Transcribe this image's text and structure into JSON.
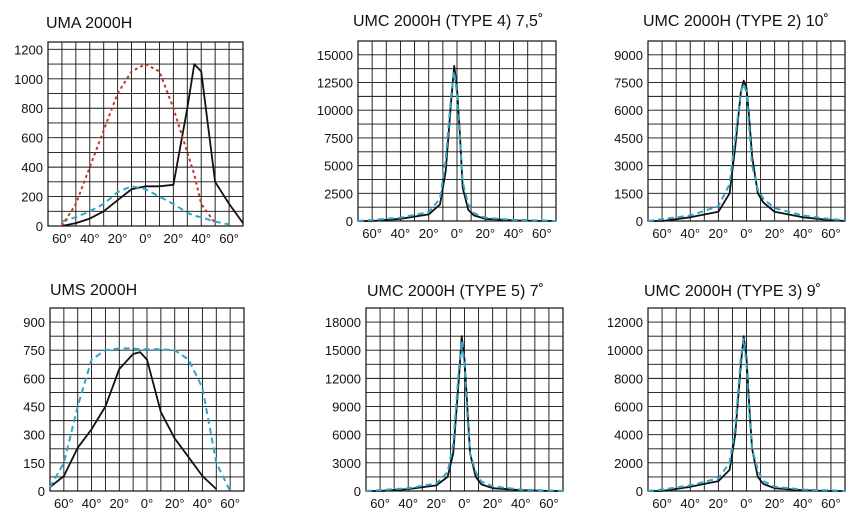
{
  "colors": {
    "solid": "#111111",
    "dash_cyan": "#2aa7c9",
    "dash_red": "#c0392b",
    "grid": "#111111"
  },
  "chart_data": [
    {
      "type": "line",
      "title": "UMA 2000H",
      "x": [
        -70,
        -60,
        -50,
        -40,
        -30,
        -20,
        -10,
        0,
        10,
        20,
        30,
        35,
        40,
        50,
        60,
        70
      ],
      "ylim": [
        0,
        1250
      ],
      "yticks": [
        0,
        200,
        400,
        600,
        800,
        1000,
        1200
      ],
      "xtick_labels": [
        "60°",
        "40°",
        "20°",
        "0°",
        "20°",
        "40°",
        "60°"
      ],
      "series": [
        {
          "style": "solid",
          "values": [
            null,
            0,
            20,
            50,
            100,
            175,
            250,
            270,
            270,
            280,
            800,
            1100,
            1050,
            300,
            150,
            20
          ]
        },
        {
          "style": "dash_cyan",
          "values": [
            null,
            30,
            60,
            100,
            150,
            230,
            270,
            250,
            200,
            150,
            90,
            70,
            60,
            30,
            10,
            null
          ]
        },
        {
          "style": "dash_red",
          "values": [
            null,
            0,
            150,
            400,
            650,
            900,
            1050,
            1100,
            1050,
            800,
            500,
            350,
            150,
            20,
            null,
            null
          ]
        }
      ]
    },
    {
      "type": "line",
      "title": "UMC 2000H (TYPE 4) 7,5˚",
      "x": [
        -70,
        -60,
        -40,
        -20,
        -12,
        -8,
        -4,
        -2,
        0,
        2,
        4,
        8,
        12,
        20,
        40,
        60,
        70
      ],
      "ylim": [
        0,
        16250
      ],
      "yticks": [
        0,
        2500,
        5000,
        7500,
        10000,
        12500,
        15000
      ],
      "xtick_labels": [
        "60°",
        "40°",
        "20°",
        "0°",
        "20°",
        "40°",
        "60°"
      ],
      "series": [
        {
          "style": "solid",
          "values": [
            0,
            0,
            200,
            600,
            1500,
            4500,
            11000,
            14000,
            12000,
            8000,
            3000,
            1000,
            500,
            200,
            50,
            0,
            0
          ]
        },
        {
          "style": "dash_cyan",
          "values": [
            0,
            100,
            300,
            800,
            2000,
            5500,
            11500,
            13500,
            11500,
            7500,
            3500,
            1500,
            700,
            300,
            100,
            50,
            0
          ]
        }
      ]
    },
    {
      "type": "line",
      "title": "UMC 2000H (TYPE 2) 10˚",
      "x": [
        -70,
        -60,
        -40,
        -20,
        -12,
        -8,
        -4,
        -2,
        0,
        2,
        4,
        8,
        12,
        20,
        40,
        60,
        70
      ],
      "ylim": [
        0,
        9750
      ],
      "yticks": [
        0,
        1500,
        3000,
        4500,
        6000,
        7500,
        9000
      ],
      "xtick_labels": [
        "60°",
        "40°",
        "20°",
        "0°",
        "20°",
        "40°",
        "60°"
      ],
      "series": [
        {
          "style": "solid",
          "values": [
            0,
            0,
            200,
            500,
            1500,
            4000,
            7000,
            7600,
            7200,
            5500,
            3500,
            1500,
            1000,
            500,
            200,
            50,
            0
          ]
        },
        {
          "style": "dash_cyan",
          "values": [
            0,
            100,
            300,
            800,
            2000,
            4500,
            7000,
            7400,
            7000,
            5000,
            3000,
            1700,
            1200,
            700,
            300,
            100,
            50
          ]
        }
      ]
    },
    {
      "type": "line",
      "title": "UMS 2000H",
      "x": [
        -70,
        -60,
        -50,
        -40,
        -30,
        -20,
        -10,
        -5,
        0,
        10,
        20,
        30,
        40,
        50,
        60,
        70
      ],
      "ylim": [
        0,
        975
      ],
      "yticks": [
        0,
        150,
        300,
        450,
        600,
        750,
        900
      ],
      "xtick_labels": [
        "60°",
        "40°",
        "20°",
        "0°",
        "20°",
        "40°",
        "60°"
      ],
      "series": [
        {
          "style": "solid",
          "values": [
            20,
            80,
            230,
            330,
            450,
            650,
            730,
            740,
            700,
            420,
            280,
            180,
            80,
            10,
            null,
            null
          ]
        },
        {
          "style": "dash_cyan",
          "values": [
            20,
            150,
            450,
            700,
            750,
            760,
            760,
            755,
            755,
            755,
            750,
            700,
            550,
            150,
            0,
            null
          ]
        }
      ]
    },
    {
      "type": "line",
      "title": "UMC 2000H (TYPE 5) 7˚",
      "x": [
        -70,
        -60,
        -40,
        -20,
        -12,
        -8,
        -4,
        -2,
        0,
        2,
        4,
        8,
        12,
        20,
        40,
        60,
        70
      ],
      "ylim": [
        0,
        19500
      ],
      "yticks": [
        0,
        3000,
        6000,
        9000,
        12000,
        15000,
        18000
      ],
      "xtick_labels": [
        "60°",
        "40°",
        "20°",
        "0°",
        "20°",
        "40°",
        "60°"
      ],
      "series": [
        {
          "style": "solid",
          "values": [
            0,
            0,
            200,
            600,
            1500,
            4000,
            12000,
            16500,
            14000,
            9000,
            4000,
            1500,
            700,
            300,
            100,
            0,
            0
          ]
        },
        {
          "style": "dash_cyan",
          "values": [
            0,
            100,
            300,
            800,
            2000,
            5000,
            13000,
            16000,
            13500,
            8000,
            4000,
            2000,
            1000,
            500,
            150,
            50,
            0
          ]
        }
      ]
    },
    {
      "type": "line",
      "title": "UMC 2000H (TYPE 3) 9˚",
      "x": [
        -70,
        -60,
        -40,
        -20,
        -12,
        -8,
        -4,
        -2,
        0,
        2,
        4,
        8,
        12,
        20,
        40,
        60,
        70
      ],
      "ylim": [
        0,
        13000
      ],
      "yticks": [
        0,
        2000,
        4000,
        6000,
        8000,
        10000,
        12000
      ],
      "xtick_labels": [
        "60°",
        "40°",
        "20°",
        "0°",
        "20°",
        "40°",
        "60°"
      ],
      "series": [
        {
          "style": "solid",
          "values": [
            0,
            0,
            300,
            700,
            1500,
            4000,
            9000,
            11000,
            9500,
            6000,
            3000,
            1000,
            500,
            200,
            50,
            0,
            0
          ]
        },
        {
          "style": "dash_cyan",
          "values": [
            0,
            100,
            400,
            900,
            2000,
            4500,
            9500,
            10800,
            9000,
            5500,
            3000,
            1500,
            700,
            300,
            100,
            50,
            0
          ]
        }
      ]
    }
  ]
}
